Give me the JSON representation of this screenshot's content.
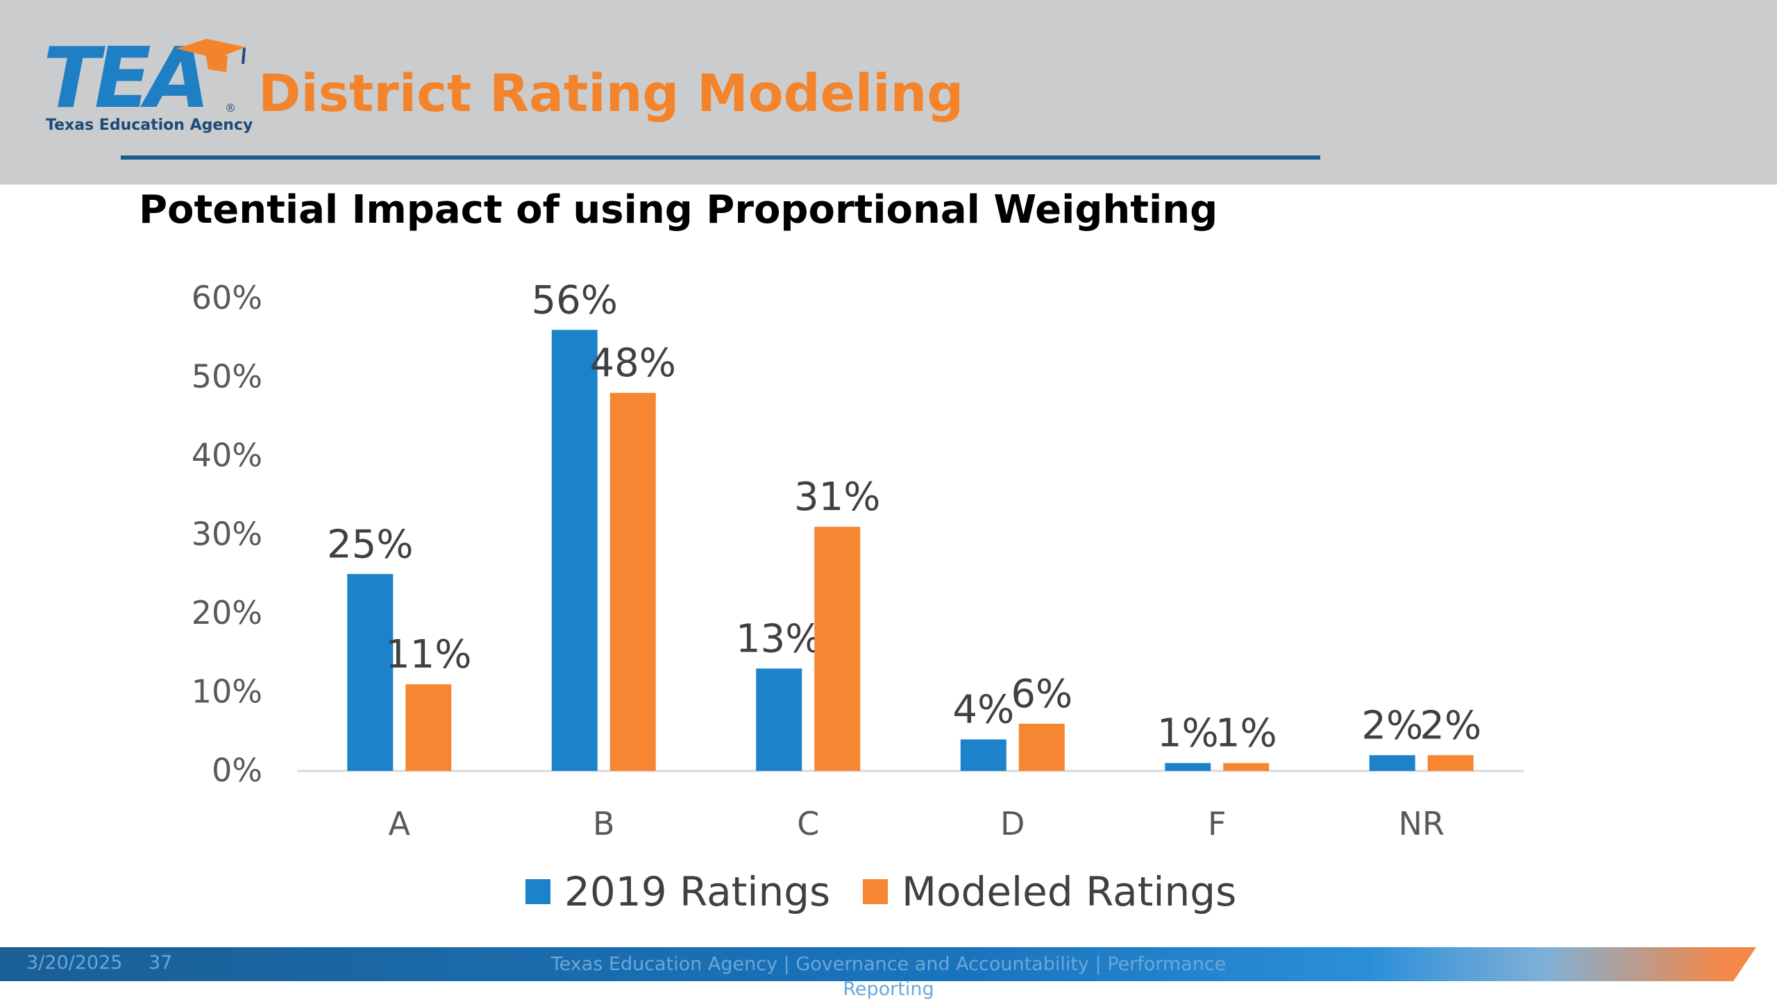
{
  "header": {
    "logo_text": "TEA",
    "logo_subtext": "Texas Education Agency",
    "logo_reg": "®",
    "title": "District Rating Modeling"
  },
  "subtitle": "Potential Impact of using Proportional Weighting",
  "footer": {
    "date": "3/20/2025",
    "page": "37",
    "text": "Texas Education Agency | Governance and Accountability | Performance Reporting"
  },
  "colors": {
    "series_2019": "#1c82ca",
    "series_modeled": "#f68632",
    "header_title": "#f4842b",
    "logo_blue": "#1f7fc4"
  },
  "chart_data": {
    "type": "bar",
    "title": "",
    "xlabel": "",
    "ylabel": "",
    "categories": [
      "A",
      "B",
      "C",
      "D",
      "F",
      "NR"
    ],
    "series": [
      {
        "name": "2019 Ratings",
        "values": [
          25,
          56,
          13,
          4,
          1,
          2
        ],
        "labels": [
          "25%",
          "56%",
          "13%",
          "4%",
          "1%",
          "2%"
        ]
      },
      {
        "name": "Modeled Ratings",
        "values": [
          11,
          48,
          31,
          6,
          1,
          2
        ],
        "labels": [
          "11%",
          "48%",
          "31%",
          "6%",
          "1%",
          "2%"
        ]
      }
    ],
    "ylim": [
      0,
      60
    ],
    "yticks": [
      0,
      10,
      20,
      30,
      40,
      50,
      60
    ],
    "ytick_labels": [
      "0%",
      "10%",
      "20%",
      "30%",
      "40%",
      "50%",
      "60%"
    ],
    "grid": false,
    "legend": "bottom"
  }
}
